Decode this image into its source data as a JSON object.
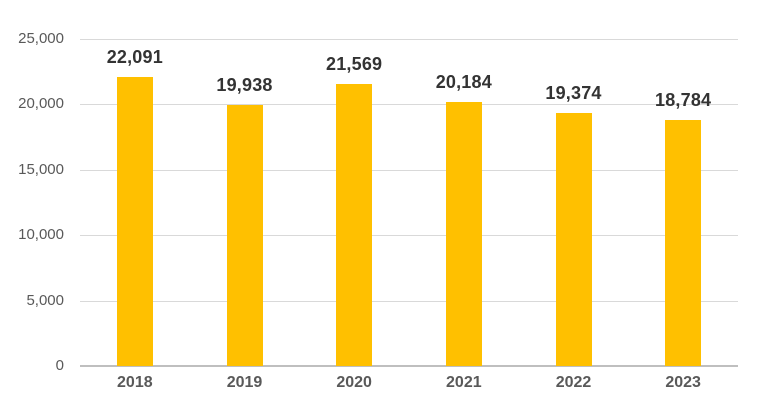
{
  "chart_data": {
    "type": "bar",
    "title": "",
    "xlabel": "",
    "ylabel": "",
    "categories": [
      "2018",
      "2019",
      "2020",
      "2021",
      "2022",
      "2023"
    ],
    "values": [
      22091,
      19938,
      21569,
      20184,
      19374,
      18784
    ],
    "value_labels": [
      "22,091",
      "19,938",
      "21,569",
      "20,184",
      "19,374",
      "18,784"
    ],
    "ylim": [
      0,
      25000
    ],
    "y_ticks": [
      0,
      5000,
      10000,
      15000,
      20000,
      25000
    ],
    "y_tick_labels": [
      "0",
      "5,000",
      "10,000",
      "15,000",
      "20,000",
      "25,000"
    ],
    "grid": "horizontal",
    "legend": "none",
    "colors": {
      "bar": "#ffc000",
      "gridline": "#d9d9d9",
      "axis_line": "#bfbfbf",
      "data_label": "#333333",
      "tick_label": "#595959"
    }
  }
}
